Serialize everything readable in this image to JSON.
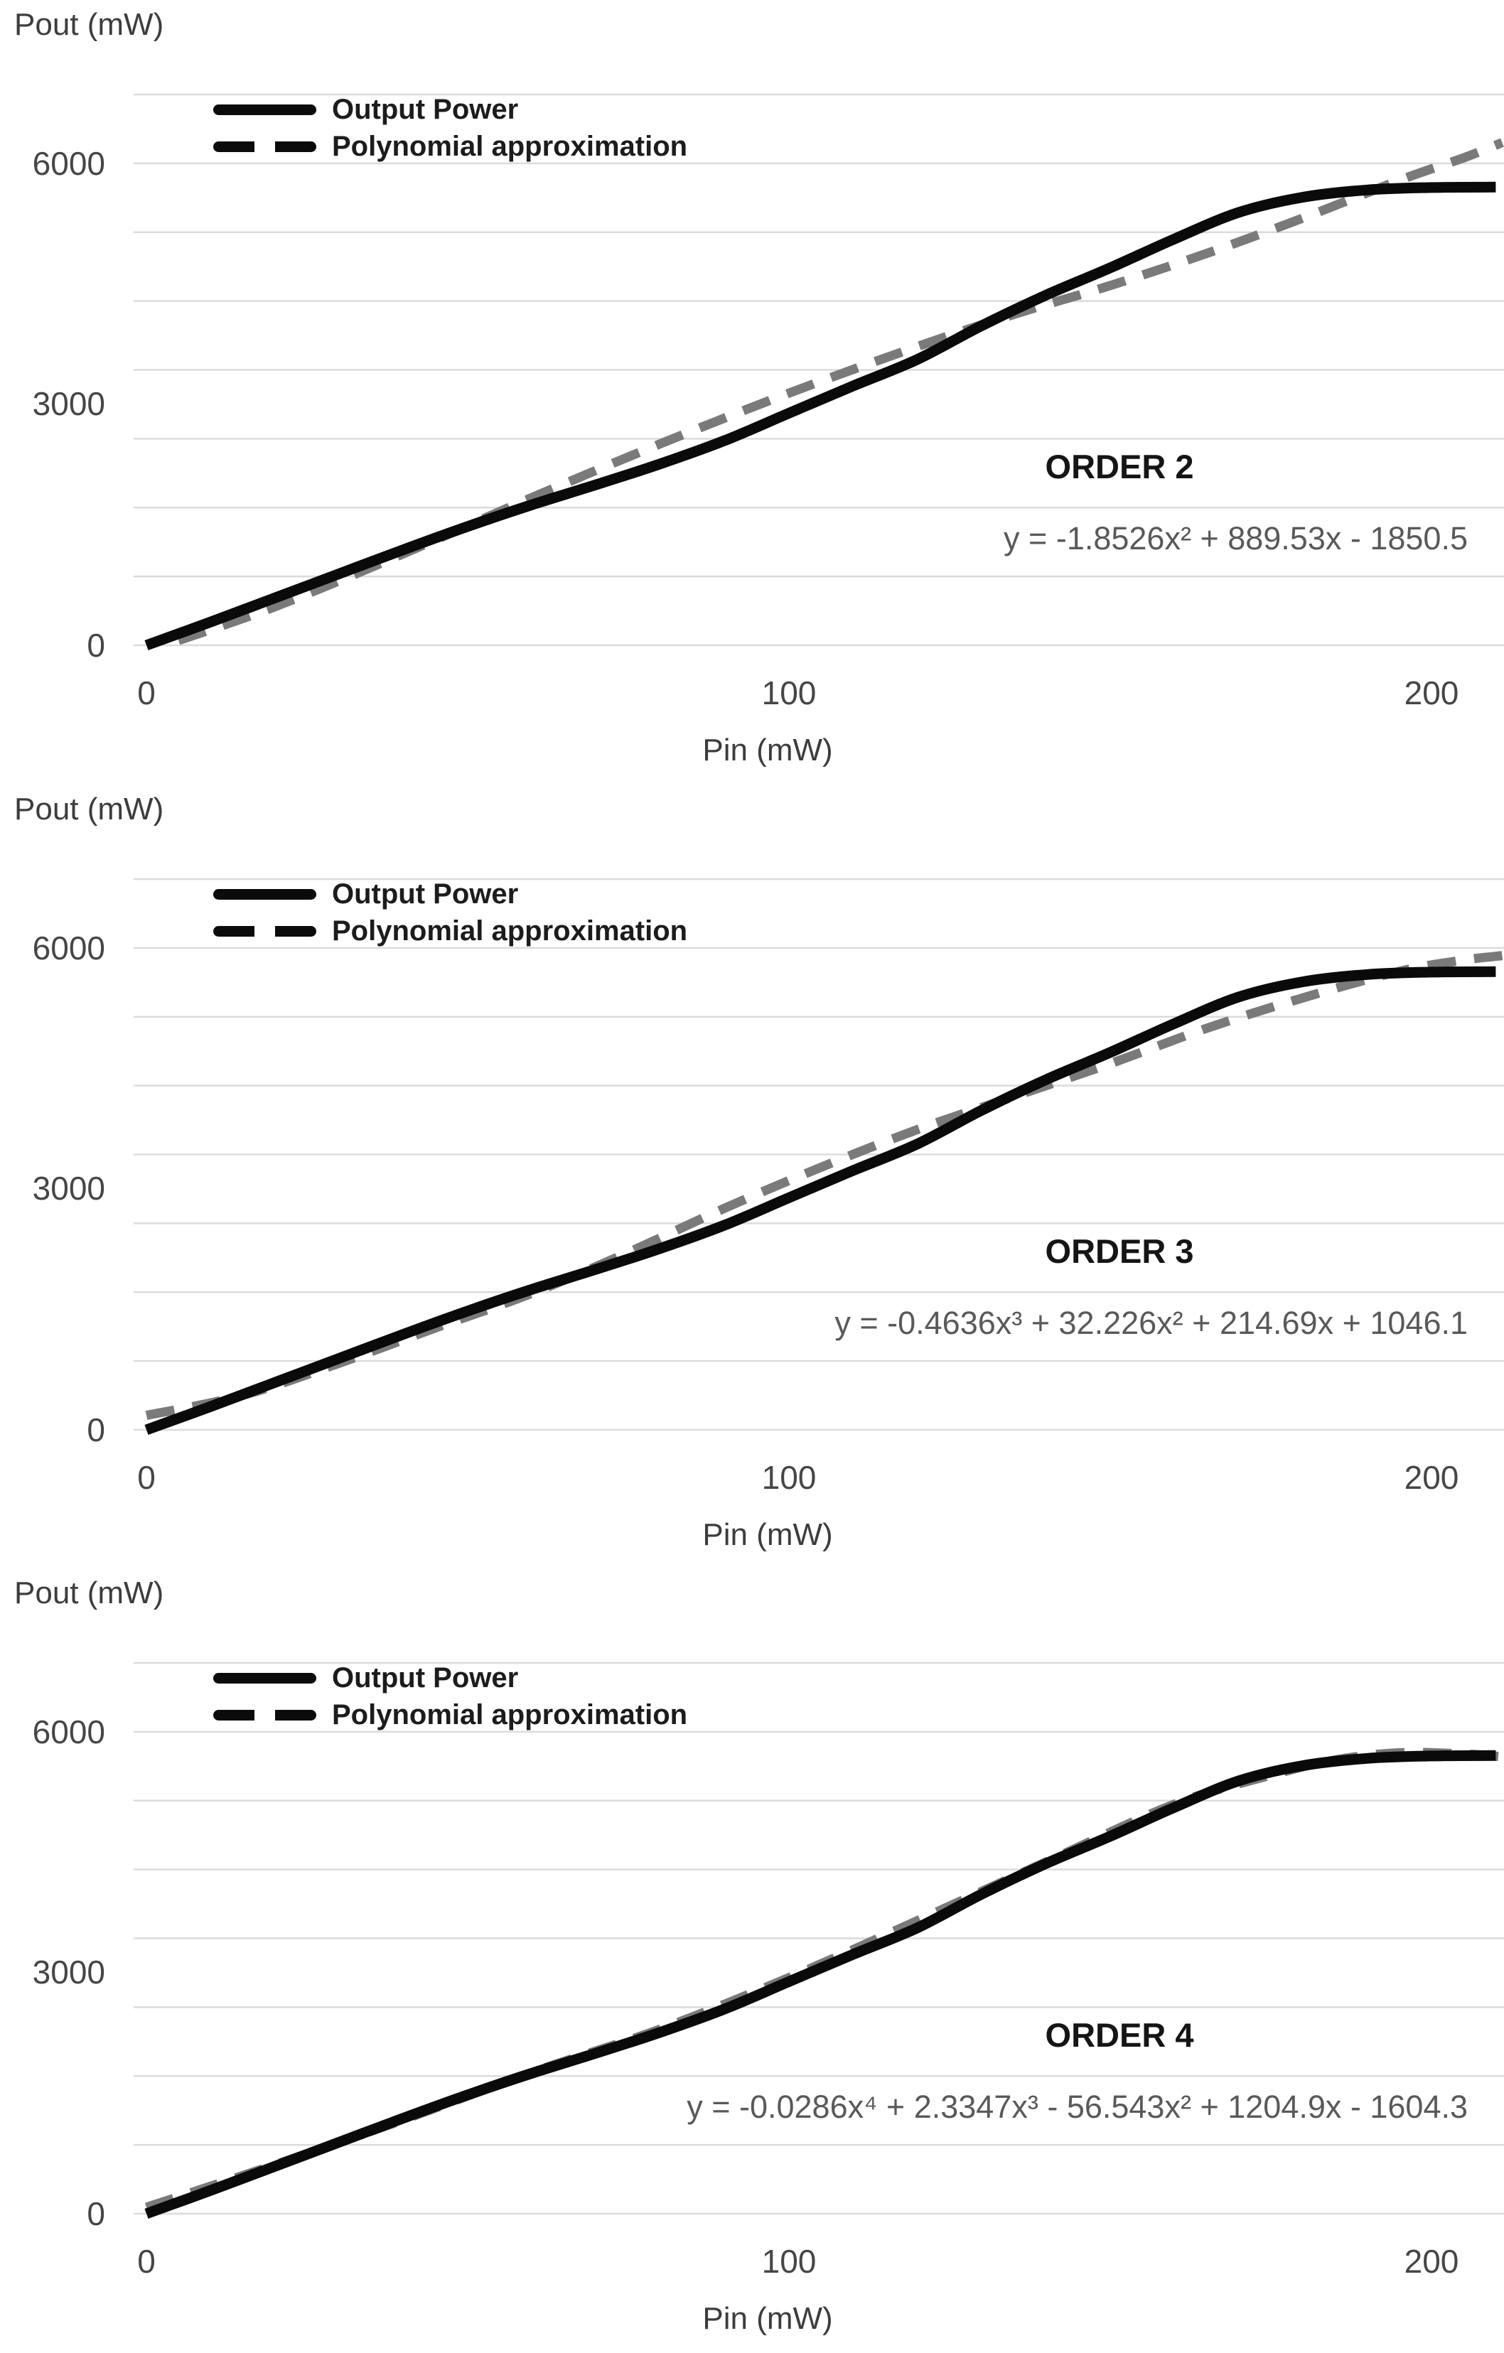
{
  "figure": {
    "y_axis_title": "Pout (mW)",
    "x_axis_title": "Pin (mW)",
    "y_tick_labels": [
      "6000",
      "3000",
      "0"
    ],
    "x_tick_labels": [
      "0",
      "100",
      "200"
    ],
    "legend": [
      {
        "label": "Output Power",
        "style": "solid"
      },
      {
        "label": "Polynomial approximation",
        "style": "dashed"
      }
    ]
  },
  "charts": [
    {
      "order_label": "ORDER 2",
      "equation": "y = -1.8526x² + 889.53x - 1850.5"
    },
    {
      "order_label": "ORDER 3",
      "equation": "y = -0.4636x³ + 32.226x² + 214.69x + 1046.1"
    },
    {
      "order_label": "ORDER 4",
      "equation": "y = -0.0286x⁴ + 2.3347x³ - 56.543x² + 1204.9x - 1604.3"
    }
  ],
  "colors": {
    "solid_curve": "#0a0a0a",
    "dashed_curve": "#7a7a7a",
    "gridline": "#dbdbdb",
    "equation_text": "#595959",
    "tick_text": "#464646"
  },
  "chart_data": [
    {
      "type": "line",
      "title": "ORDER 2",
      "annotation": "y = -1.8526x² + 889.53x - 1850.5",
      "xlabel": "Pin (mW)",
      "ylabel": "Pout (mW)",
      "xlim": [
        0,
        211
      ],
      "ylim": [
        0,
        6875
      ],
      "x_ticks": [
        0,
        100,
        200
      ],
      "y_ticks": [
        0,
        3000,
        6000
      ],
      "grid": {
        "horizontal_lines": 9,
        "vertical_lines": 0
      },
      "legend_position": "inside-top-left",
      "series": [
        {
          "name": "Output Power",
          "style": "solid",
          "color": "#0a0a0a",
          "points": [
            [
              0,
              0
            ],
            [
              10,
              290
            ],
            [
              20,
              590
            ],
            [
              30,
              890
            ],
            [
              40,
              1190
            ],
            [
              50,
              1480
            ],
            [
              60,
              1750
            ],
            [
              70,
              2000
            ],
            [
              80,
              2260
            ],
            [
              90,
              2550
            ],
            [
              100,
              2890
            ],
            [
              110,
              3230
            ],
            [
              120,
              3560
            ],
            [
              130,
              3980
            ],
            [
              140,
              4360
            ],
            [
              150,
              4700
            ],
            [
              160,
              5060
            ],
            [
              170,
              5390
            ],
            [
              180,
              5580
            ],
            [
              190,
              5670
            ],
            [
              200,
              5700
            ],
            [
              210,
              5705
            ]
          ]
        },
        {
          "name": "Polynomial approximation",
          "style": "dashed",
          "color": "#7a7a7a",
          "points": [
            [
              5,
              60
            ],
            [
              20,
              480
            ],
            [
              40,
              1140
            ],
            [
              60,
              1840
            ],
            [
              80,
              2510
            ],
            [
              100,
              3140
            ],
            [
              120,
              3720
            ],
            [
              135,
              4120
            ],
            [
              150,
              4480
            ],
            [
              165,
              4880
            ],
            [
              180,
              5320
            ],
            [
              195,
              5790
            ],
            [
              205,
              6070
            ],
            [
              211,
              6260
            ]
          ]
        }
      ]
    },
    {
      "type": "line",
      "title": "ORDER 3",
      "annotation": "y = -0.4636x³ + 32.226x² + 214.69x + 1046.1",
      "xlabel": "Pin (mW)",
      "ylabel": "Pout (mW)",
      "xlim": [
        0,
        211
      ],
      "ylim": [
        0,
        6875
      ],
      "x_ticks": [
        0,
        100,
        200
      ],
      "y_ticks": [
        0,
        3000,
        6000
      ],
      "grid": {
        "horizontal_lines": 9,
        "vertical_lines": 0
      },
      "legend_position": "inside-top-left",
      "series": [
        {
          "name": "Output Power",
          "style": "solid",
          "color": "#0a0a0a",
          "points": [
            [
              0,
              0
            ],
            [
              10,
              290
            ],
            [
              20,
              590
            ],
            [
              30,
              890
            ],
            [
              40,
              1190
            ],
            [
              50,
              1480
            ],
            [
              60,
              1750
            ],
            [
              70,
              2000
            ],
            [
              80,
              2260
            ],
            [
              90,
              2550
            ],
            [
              100,
              2890
            ],
            [
              110,
              3230
            ],
            [
              120,
              3560
            ],
            [
              130,
              3980
            ],
            [
              140,
              4360
            ],
            [
              150,
              4700
            ],
            [
              160,
              5060
            ],
            [
              170,
              5390
            ],
            [
              180,
              5580
            ],
            [
              190,
              5670
            ],
            [
              200,
              5700
            ],
            [
              210,
              5705
            ]
          ]
        },
        {
          "name": "Polynomial approximation",
          "style": "dashed",
          "color": "#7a7a7a",
          "points": [
            [
              0,
              180
            ],
            [
              15,
              430
            ],
            [
              30,
              830
            ],
            [
              45,
              1270
            ],
            [
              60,
              1700
            ],
            [
              75,
              2210
            ],
            [
              90,
              2760
            ],
            [
              105,
              3270
            ],
            [
              120,
              3740
            ],
            [
              135,
              4150
            ],
            [
              150,
              4560
            ],
            [
              165,
              5000
            ],
            [
              180,
              5380
            ],
            [
              195,
              5710
            ],
            [
              205,
              5850
            ],
            [
              211,
              5905
            ]
          ]
        }
      ]
    },
    {
      "type": "line",
      "title": "ORDER 4",
      "annotation": "y = -0.0286x⁴ + 2.3347x³ - 56.543x² + 1204.9x - 1604.3",
      "xlabel": "Pin (mW)",
      "ylabel": "Pout (mW)",
      "xlim": [
        0,
        211
      ],
      "ylim": [
        0,
        6875
      ],
      "x_ticks": [
        0,
        100,
        200
      ],
      "y_ticks": [
        0,
        3000,
        6000
      ],
      "grid": {
        "horizontal_lines": 9,
        "vertical_lines": 0
      },
      "legend_position": "inside-top-left",
      "series": [
        {
          "name": "Output Power",
          "style": "solid",
          "color": "#0a0a0a",
          "points": [
            [
              0,
              0
            ],
            [
              10,
              290
            ],
            [
              20,
              590
            ],
            [
              30,
              890
            ],
            [
              40,
              1190
            ],
            [
              50,
              1480
            ],
            [
              60,
              1750
            ],
            [
              70,
              2000
            ],
            [
              80,
              2260
            ],
            [
              90,
              2550
            ],
            [
              100,
              2890
            ],
            [
              110,
              3230
            ],
            [
              120,
              3560
            ],
            [
              130,
              3980
            ],
            [
              140,
              4360
            ],
            [
              150,
              4700
            ],
            [
              160,
              5060
            ],
            [
              170,
              5390
            ],
            [
              180,
              5580
            ],
            [
              190,
              5670
            ],
            [
              200,
              5700
            ],
            [
              210,
              5705
            ]
          ]
        },
        {
          "name": "Polynomial approximation",
          "style": "dashed",
          "color": "#7a7a7a",
          "points": [
            [
              0,
              80
            ],
            [
              20,
              610
            ],
            [
              40,
              1170
            ],
            [
              60,
              1760
            ],
            [
              80,
              2300
            ],
            [
              100,
              2940
            ],
            [
              120,
              3650
            ],
            [
              140,
              4380
            ],
            [
              160,
              5100
            ],
            [
              175,
              5460
            ],
            [
              185,
              5650
            ],
            [
              195,
              5740
            ],
            [
              205,
              5725
            ],
            [
              211,
              5690
            ]
          ]
        }
      ]
    }
  ]
}
